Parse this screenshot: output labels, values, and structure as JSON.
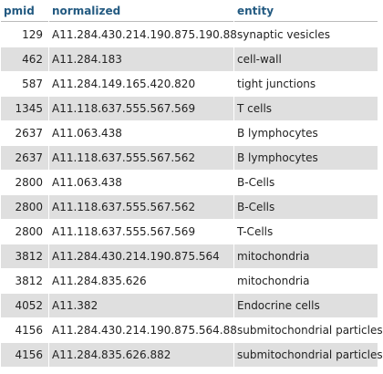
{
  "table": {
    "headers": {
      "pmid": "pmid",
      "normalized": "normalized",
      "entity": "entity"
    },
    "rows": [
      {
        "pmid": "129",
        "normalized": "A11.284.430.214.190.875.190.88",
        "entity": "synaptic vesicles"
      },
      {
        "pmid": "462",
        "normalized": "A11.284.183",
        "entity": "cell-wall"
      },
      {
        "pmid": "587",
        "normalized": "A11.284.149.165.420.820",
        "entity": "tight junctions"
      },
      {
        "pmid": "1345",
        "normalized": "A11.118.637.555.567.569",
        "entity": "T cells"
      },
      {
        "pmid": "2637",
        "normalized": "A11.063.438",
        "entity": "B lymphocytes"
      },
      {
        "pmid": "2637",
        "normalized": "A11.118.637.555.567.562",
        "entity": "B lymphocytes"
      },
      {
        "pmid": "2800",
        "normalized": "A11.063.438",
        "entity": "B-Cells"
      },
      {
        "pmid": "2800",
        "normalized": "A11.118.637.555.567.562",
        "entity": "B-Cells"
      },
      {
        "pmid": "2800",
        "normalized": "A11.118.637.555.567.569",
        "entity": "T-Cells"
      },
      {
        "pmid": "3812",
        "normalized": "A11.284.430.214.190.875.564",
        "entity": "mitochondria"
      },
      {
        "pmid": "3812",
        "normalized": "A11.284.835.626",
        "entity": "mitochondria"
      },
      {
        "pmid": "4052",
        "normalized": "A11.382",
        "entity": "Endocrine cells"
      },
      {
        "pmid": "4156",
        "normalized": "A11.284.430.214.190.875.564.88",
        "entity": "submitochondrial particles"
      },
      {
        "pmid": "4156",
        "normalized": "A11.284.835.626.882",
        "entity": "submitochondrial particles"
      }
    ]
  },
  "colors": {
    "header_text": "#235a81",
    "row_odd": "#ffffff",
    "row_even": "#dfdfdf",
    "cell_text": "#222222"
  }
}
